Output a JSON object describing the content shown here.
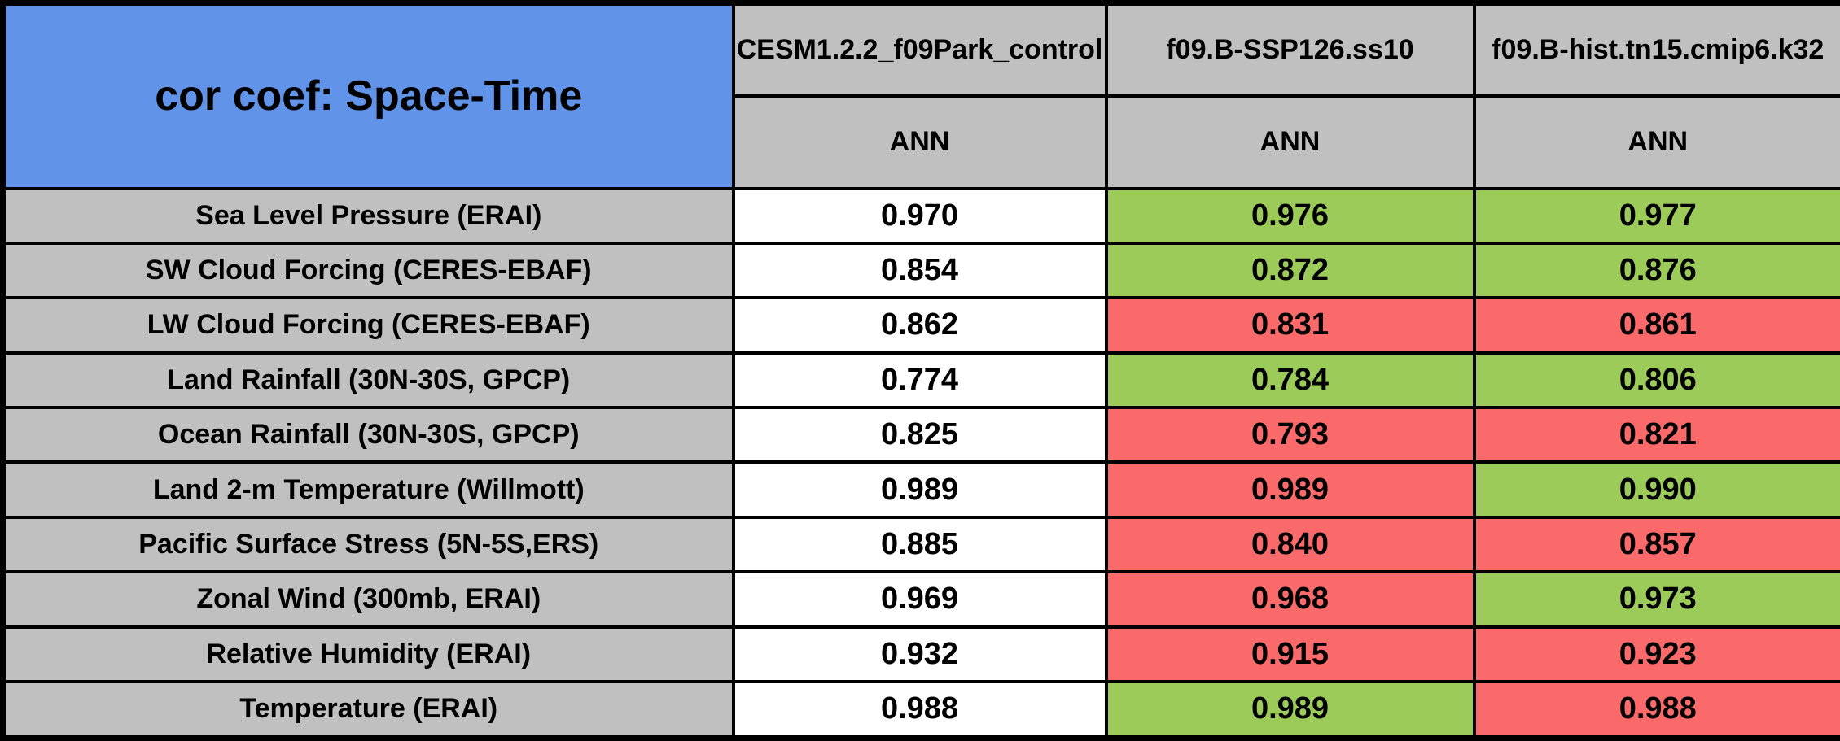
{
  "title": "cor coef: Space-Time",
  "columns": [
    {
      "label": "CESM1.2.2_f09Park_control",
      "season": "ANN"
    },
    {
      "label": "f09.B-SSP126.ss10",
      "season": "ANN"
    },
    {
      "label": "f09.B-hist.tn15.cmip6.k32",
      "season": "ANN"
    }
  ],
  "rows": [
    {
      "label": "Sea Level Pressure (ERAI)",
      "values": [
        "0.970",
        "0.976",
        "0.977"
      ],
      "colors": [
        "white",
        "green",
        "green"
      ]
    },
    {
      "label": "SW Cloud Forcing (CERES-EBAF)",
      "values": [
        "0.854",
        "0.872",
        "0.876"
      ],
      "colors": [
        "white",
        "green",
        "green"
      ]
    },
    {
      "label": "LW Cloud Forcing (CERES-EBAF)",
      "values": [
        "0.862",
        "0.831",
        "0.861"
      ],
      "colors": [
        "white",
        "red",
        "red"
      ]
    },
    {
      "label": "Land Rainfall (30N-30S, GPCP)",
      "values": [
        "0.774",
        "0.784",
        "0.806"
      ],
      "colors": [
        "white",
        "green",
        "green"
      ]
    },
    {
      "label": "Ocean Rainfall (30N-30S, GPCP)",
      "values": [
        "0.825",
        "0.793",
        "0.821"
      ],
      "colors": [
        "white",
        "red",
        "red"
      ]
    },
    {
      "label": "Land 2-m Temperature (Willmott)",
      "values": [
        "0.989",
        "0.989",
        "0.990"
      ],
      "colors": [
        "white",
        "red",
        "green"
      ]
    },
    {
      "label": "Pacific Surface Stress (5N-5S,ERS)",
      "values": [
        "0.885",
        "0.840",
        "0.857"
      ],
      "colors": [
        "white",
        "red",
        "red"
      ]
    },
    {
      "label": "Zonal Wind (300mb, ERAI)",
      "values": [
        "0.969",
        "0.968",
        "0.973"
      ],
      "colors": [
        "white",
        "red",
        "green"
      ]
    },
    {
      "label": "Relative Humidity (ERAI)",
      "values": [
        "0.932",
        "0.915",
        "0.923"
      ],
      "colors": [
        "white",
        "red",
        "red"
      ]
    },
    {
      "label": "Temperature (ERAI)",
      "values": [
        "0.988",
        "0.989",
        "0.988"
      ],
      "colors": [
        "white",
        "green",
        "red"
      ]
    }
  ],
  "colors": {
    "title_blue": "#6193E8",
    "header_gray": "#C0C0C0",
    "reference_white": "#FFFFFF",
    "better_green": "#9CCB5A",
    "worse_red": "#FA6A6A",
    "border_black": "#000000"
  },
  "chart_data": {
    "type": "table",
    "title": "cor coef: Space-Time",
    "columns": [
      "CESM1.2.2_f09Park_control",
      "f09.B-SSP126.ss10",
      "f09.B-hist.tn15.cmip6.k32"
    ],
    "season_subheaders": [
      "ANN",
      "ANN",
      "ANN"
    ],
    "categories": [
      "Sea Level Pressure (ERAI)",
      "SW Cloud Forcing (CERES-EBAF)",
      "LW Cloud Forcing (CERES-EBAF)",
      "Land Rainfall (30N-30S, GPCP)",
      "Ocean Rainfall (30N-30S, GPCP)",
      "Land 2-m Temperature (Willmott)",
      "Pacific Surface Stress (5N-5S,ERS)",
      "Zonal Wind (300mb, ERAI)",
      "Relative Humidity (ERAI)",
      "Temperature (ERAI)"
    ],
    "series": [
      {
        "name": "CESM1.2.2_f09Park_control",
        "values": [
          0.97,
          0.854,
          0.862,
          0.774,
          0.825,
          0.989,
          0.885,
          0.969,
          0.932,
          0.988
        ],
        "cell_colors": [
          "white",
          "white",
          "white",
          "white",
          "white",
          "white",
          "white",
          "white",
          "white",
          "white"
        ]
      },
      {
        "name": "f09.B-SSP126.ss10",
        "values": [
          0.976,
          0.872,
          0.831,
          0.784,
          0.793,
          0.989,
          0.84,
          0.968,
          0.915,
          0.989
        ],
        "cell_colors": [
          "green",
          "green",
          "red",
          "green",
          "red",
          "red",
          "red",
          "red",
          "red",
          "green"
        ]
      },
      {
        "name": "f09.B-hist.tn15.cmip6.k32",
        "values": [
          0.977,
          0.876,
          0.861,
          0.806,
          0.821,
          0.99,
          0.857,
          0.973,
          0.923,
          0.988
        ],
        "cell_colors": [
          "green",
          "green",
          "red",
          "green",
          "red",
          "green",
          "red",
          "green",
          "red",
          "red"
        ]
      }
    ]
  }
}
